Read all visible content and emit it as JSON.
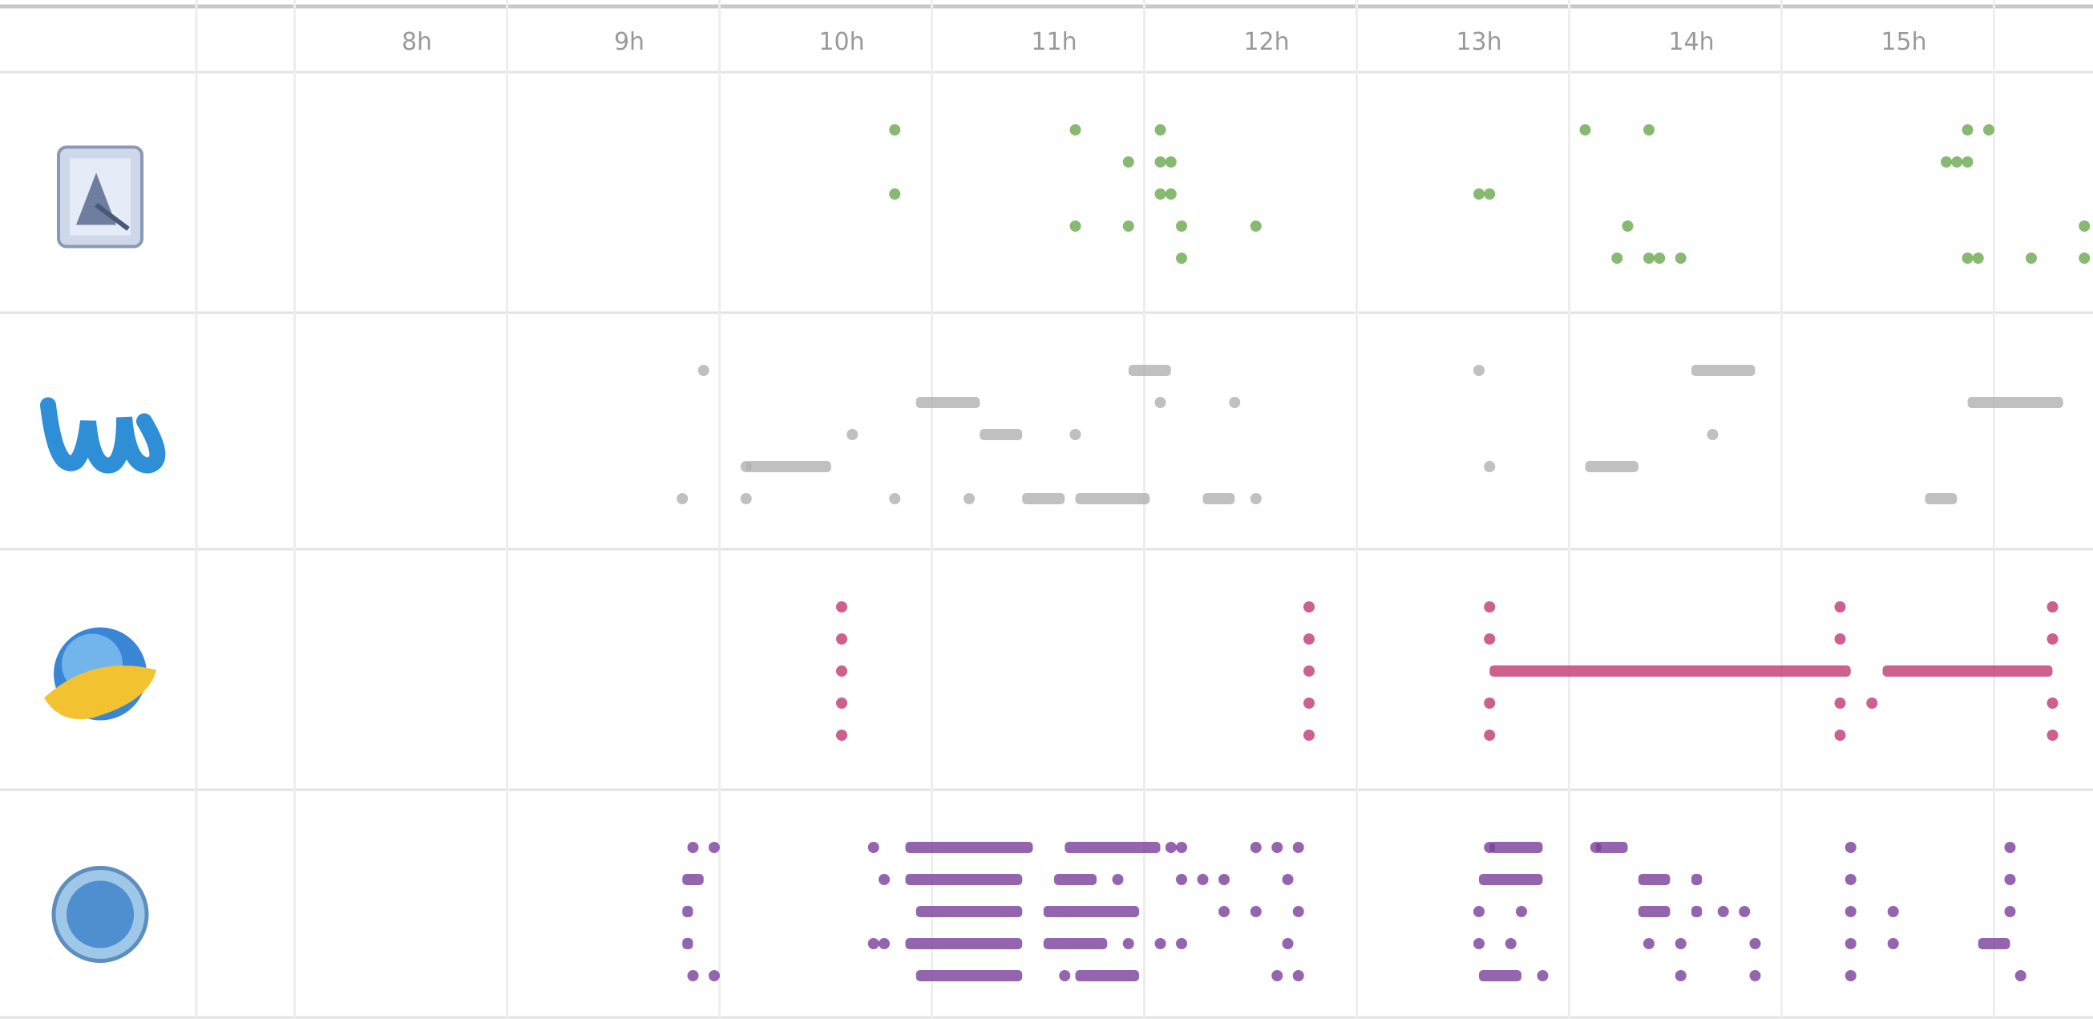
{
  "chart_data": {
    "type": "scatter",
    "x_ticks": [
      "8h",
      "9h",
      "10h",
      "11h",
      "12h",
      "13h",
      "14h",
      "15h"
    ],
    "x_range": [
      7.25,
      15.55
    ],
    "rows": [
      {
        "icon": "preview-app-icon",
        "color": "#6aa84f",
        "events": [
          {
            "t": 10.25,
            "lane": 0
          },
          {
            "t": 11.1,
            "lane": 0
          },
          {
            "t": 11.5,
            "lane": 0
          },
          {
            "t": 13.5,
            "lane": 0
          },
          {
            "t": 13.8,
            "lane": 0
          },
          {
            "t": 15.3,
            "lane": 0
          },
          {
            "t": 15.4,
            "lane": 0
          },
          {
            "t": 11.35,
            "lane": 1
          },
          {
            "t": 11.5,
            "lane": 1
          },
          {
            "t": 11.55,
            "lane": 1
          },
          {
            "t": 15.2,
            "lane": 1
          },
          {
            "t": 15.25,
            "lane": 1
          },
          {
            "t": 15.3,
            "lane": 1
          },
          {
            "t": 10.25,
            "lane": 2
          },
          {
            "t": 11.5,
            "lane": 2
          },
          {
            "t": 11.55,
            "lane": 2
          },
          {
            "t": 13.0,
            "lane": 2
          },
          {
            "t": 13.05,
            "lane": 2
          },
          {
            "t": 11.1,
            "lane": 3
          },
          {
            "t": 11.35,
            "lane": 3
          },
          {
            "t": 11.6,
            "lane": 3
          },
          {
            "t": 11.95,
            "lane": 3
          },
          {
            "t": 13.7,
            "lane": 3
          },
          {
            "t": 15.85,
            "lane": 3
          },
          {
            "t": 11.6,
            "lane": 4
          },
          {
            "t": 13.65,
            "lane": 4
          },
          {
            "t": 13.8,
            "lane": 4
          },
          {
            "t": 13.85,
            "lane": 4
          },
          {
            "t": 13.95,
            "lane": 4
          },
          {
            "t": 15.3,
            "lane": 4
          },
          {
            "t": 15.35,
            "lane": 4
          },
          {
            "t": 15.6,
            "lane": 4
          },
          {
            "t": 15.85,
            "lane": 4
          }
        ],
        "bars": []
      },
      {
        "icon": "word-app-icon",
        "color": "#b0b0b0",
        "events": [
          {
            "t": 9.35,
            "lane": 0
          },
          {
            "t": 13.0,
            "lane": 0
          },
          {
            "t": 11.5,
            "lane": 1
          },
          {
            "t": 11.85,
            "lane": 1
          },
          {
            "t": 10.05,
            "lane": 2
          },
          {
            "t": 11.1,
            "lane": 2
          },
          {
            "t": 14.1,
            "lane": 2
          },
          {
            "t": 9.55,
            "lane": 3
          },
          {
            "t": 13.05,
            "lane": 3
          },
          {
            "t": 9.25,
            "lane": 4
          },
          {
            "t": 9.55,
            "lane": 4
          },
          {
            "t": 10.25,
            "lane": 4
          },
          {
            "t": 10.6,
            "lane": 4
          },
          {
            "t": 11.95,
            "lane": 4
          }
        ],
        "bars": [
          {
            "t0": 11.35,
            "t1": 11.55,
            "lane": 0
          },
          {
            "t0": 14.0,
            "t1": 14.3,
            "lane": 0
          },
          {
            "t0": 10.35,
            "t1": 10.65,
            "lane": 1
          },
          {
            "t0": 15.3,
            "t1": 15.75,
            "lane": 1
          },
          {
            "t0": 10.65,
            "t1": 10.85,
            "lane": 2
          },
          {
            "t0": 9.55,
            "t1": 9.95,
            "lane": 3
          },
          {
            "t0": 13.5,
            "t1": 13.75,
            "lane": 3
          },
          {
            "t0": 10.85,
            "t1": 11.05,
            "lane": 4
          },
          {
            "t0": 11.1,
            "t1": 11.45,
            "lane": 4
          },
          {
            "t0": 11.7,
            "t1": 11.85,
            "lane": 4
          },
          {
            "t0": 15.1,
            "t1": 15.25,
            "lane": 4
          }
        ]
      },
      {
        "icon": "browser-app-icon",
        "color": "#c1386f",
        "events": [
          {
            "t": 10.0,
            "lane": 0
          },
          {
            "t": 12.2,
            "lane": 0
          },
          {
            "t": 13.05,
            "lane": 0
          },
          {
            "t": 14.7,
            "lane": 0
          },
          {
            "t": 15.7,
            "lane": 0
          },
          {
            "t": 10.0,
            "lane": 1
          },
          {
            "t": 12.2,
            "lane": 1
          },
          {
            "t": 13.05,
            "lane": 1
          },
          {
            "t": 14.7,
            "lane": 1
          },
          {
            "t": 15.7,
            "lane": 1
          },
          {
            "t": 10.0,
            "lane": 2
          },
          {
            "t": 12.2,
            "lane": 2
          },
          {
            "t": 10.0,
            "lane": 3
          },
          {
            "t": 12.2,
            "lane": 3
          },
          {
            "t": 13.05,
            "lane": 3
          },
          {
            "t": 14.7,
            "lane": 3
          },
          {
            "t": 14.85,
            "lane": 3
          },
          {
            "t": 15.7,
            "lane": 3
          },
          {
            "t": 10.0,
            "lane": 4
          },
          {
            "t": 12.2,
            "lane": 4
          },
          {
            "t": 13.05,
            "lane": 4
          },
          {
            "t": 14.7,
            "lane": 4
          },
          {
            "t": 15.7,
            "lane": 4
          }
        ],
        "bars": [
          {
            "t0": 13.05,
            "t1": 14.75,
            "lane": 2
          },
          {
            "t0": 14.9,
            "t1": 15.7,
            "lane": 2
          }
        ]
      },
      {
        "icon": "safari-app-icon",
        "color": "#7a3d9b",
        "events": [
          {
            "t": 9.3,
            "lane": 0
          },
          {
            "t": 9.4,
            "lane": 0
          },
          {
            "t": 10.15,
            "lane": 0
          },
          {
            "t": 11.55,
            "lane": 0
          },
          {
            "t": 11.6,
            "lane": 0
          },
          {
            "t": 11.95,
            "lane": 0
          },
          {
            "t": 12.05,
            "lane": 0
          },
          {
            "t": 12.15,
            "lane": 0
          },
          {
            "t": 13.05,
            "lane": 0
          },
          {
            "t": 13.55,
            "lane": 0
          },
          {
            "t": 14.75,
            "lane": 0
          },
          {
            "t": 15.5,
            "lane": 0
          },
          {
            "t": 10.2,
            "lane": 1
          },
          {
            "t": 11.3,
            "lane": 1
          },
          {
            "t": 11.6,
            "lane": 1
          },
          {
            "t": 11.7,
            "lane": 1
          },
          {
            "t": 11.8,
            "lane": 1
          },
          {
            "t": 12.1,
            "lane": 1
          },
          {
            "t": 14.75,
            "lane": 1
          },
          {
            "t": 15.5,
            "lane": 1
          },
          {
            "t": 11.8,
            "lane": 2
          },
          {
            "t": 11.95,
            "lane": 2
          },
          {
            "t": 12.15,
            "lane": 2
          },
          {
            "t": 13.0,
            "lane": 2
          },
          {
            "t": 13.2,
            "lane": 2
          },
          {
            "t": 14.15,
            "lane": 2
          },
          {
            "t": 14.25,
            "lane": 2
          },
          {
            "t": 14.75,
            "lane": 2
          },
          {
            "t": 14.95,
            "lane": 2
          },
          {
            "t": 15.5,
            "lane": 2
          },
          {
            "t": 10.15,
            "lane": 3
          },
          {
            "t": 10.2,
            "lane": 3
          },
          {
            "t": 11.35,
            "lane": 3
          },
          {
            "t": 11.5,
            "lane": 3
          },
          {
            "t": 11.6,
            "lane": 3
          },
          {
            "t": 12.1,
            "lane": 3
          },
          {
            "t": 13.0,
            "lane": 3
          },
          {
            "t": 13.15,
            "lane": 3
          },
          {
            "t": 13.8,
            "lane": 3
          },
          {
            "t": 13.95,
            "lane": 3
          },
          {
            "t": 14.3,
            "lane": 3
          },
          {
            "t": 14.75,
            "lane": 3
          },
          {
            "t": 14.95,
            "lane": 3
          },
          {
            "t": 9.3,
            "lane": 4
          },
          {
            "t": 9.4,
            "lane": 4
          },
          {
            "t": 11.05,
            "lane": 4
          },
          {
            "t": 12.05,
            "lane": 4
          },
          {
            "t": 12.15,
            "lane": 4
          },
          {
            "t": 13.3,
            "lane": 4
          },
          {
            "t": 13.95,
            "lane": 4
          },
          {
            "t": 14.3,
            "lane": 4
          },
          {
            "t": 14.75,
            "lane": 4
          },
          {
            "t": 15.55,
            "lane": 4
          }
        ],
        "bars": [
          {
            "t0": 9.25,
            "t1": 9.35,
            "lane": 1
          },
          {
            "t0": 9.25,
            "t1": 9.3,
            "lane": 2
          },
          {
            "t0": 9.25,
            "t1": 9.3,
            "lane": 3
          },
          {
            "t0": 10.3,
            "t1": 10.9,
            "lane": 0
          },
          {
            "t0": 11.05,
            "t1": 11.5,
            "lane": 0
          },
          {
            "t0": 13.05,
            "t1": 13.3,
            "lane": 0
          },
          {
            "t0": 13.55,
            "t1": 13.7,
            "lane": 0
          },
          {
            "t0": 10.3,
            "t1": 10.85,
            "lane": 1
          },
          {
            "t0": 11.0,
            "t1": 11.2,
            "lane": 1
          },
          {
            "t0": 13.0,
            "t1": 13.3,
            "lane": 1
          },
          {
            "t0": 13.75,
            "t1": 13.9,
            "lane": 1
          },
          {
            "t0": 14.0,
            "t1": 14.05,
            "lane": 1
          },
          {
            "t0": 10.35,
            "t1": 10.85,
            "lane": 2
          },
          {
            "t0": 10.95,
            "t1": 11.4,
            "lane": 2
          },
          {
            "t0": 13.75,
            "t1": 13.9,
            "lane": 2
          },
          {
            "t0": 14.0,
            "t1": 14.05,
            "lane": 2
          },
          {
            "t0": 10.3,
            "t1": 10.85,
            "lane": 3
          },
          {
            "t0": 10.95,
            "t1": 11.25,
            "lane": 3
          },
          {
            "t0": 15.35,
            "t1": 15.5,
            "lane": 3
          },
          {
            "t0": 10.35,
            "t1": 10.85,
            "lane": 4
          },
          {
            "t0": 11.1,
            "t1": 11.4,
            "lane": 4
          },
          {
            "t0": 13.0,
            "t1": 13.2,
            "lane": 4
          }
        ]
      }
    ]
  }
}
